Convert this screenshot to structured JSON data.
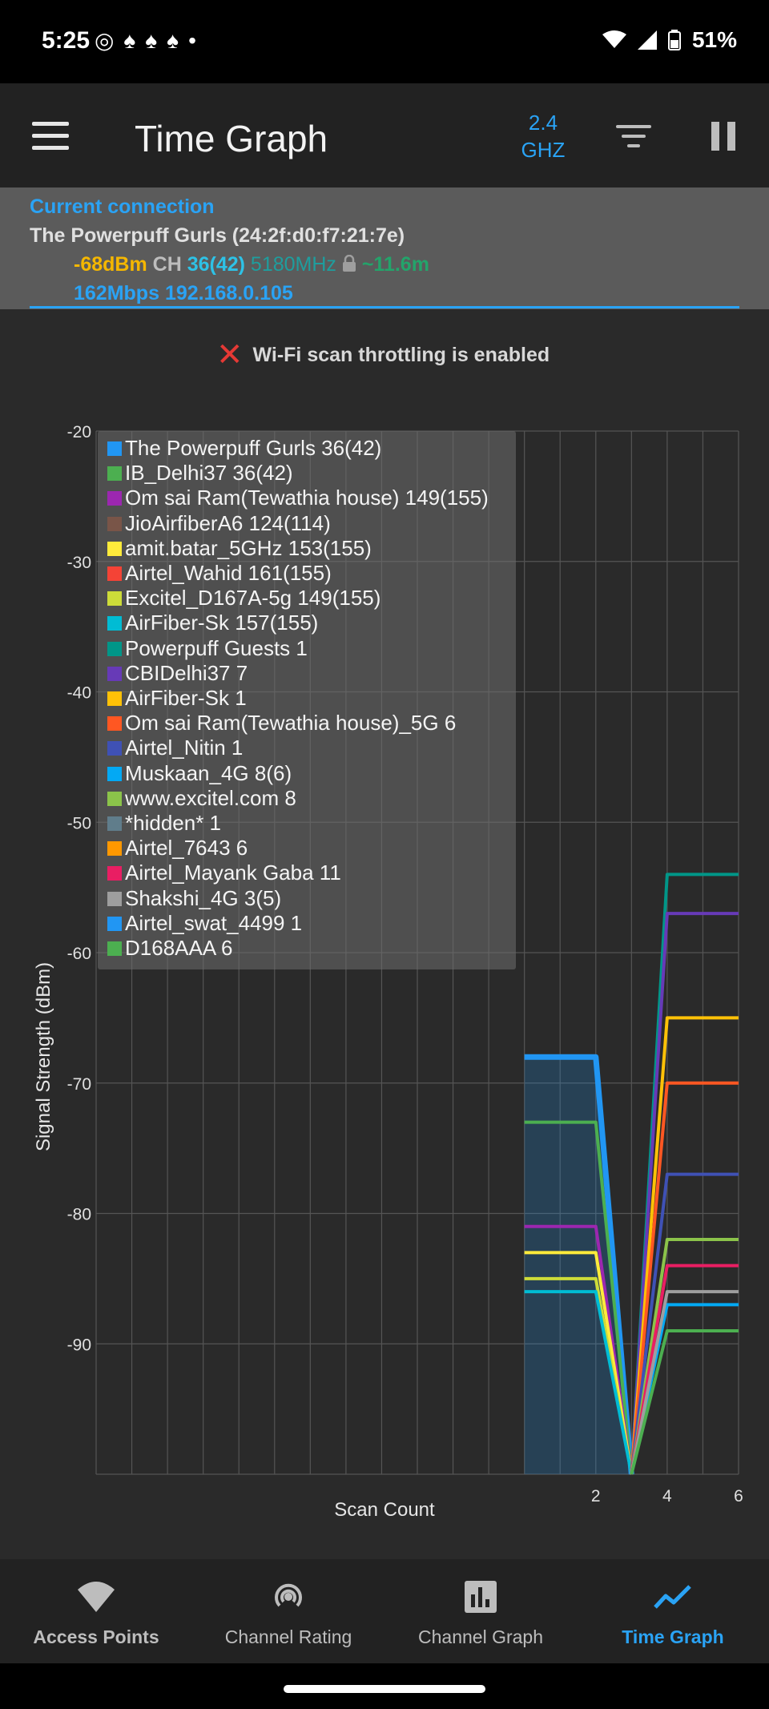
{
  "status": {
    "time": "5:25",
    "battery": "51%",
    "notification_icons": [
      "whatsapp-icon",
      "snapchat-icon",
      "snapchat-icon",
      "snapchat-icon",
      "dot-icon"
    ]
  },
  "app_bar": {
    "title": "Time Graph",
    "band_line1": "2.4",
    "band_line2": "GHZ"
  },
  "connection": {
    "label": "Current connection",
    "ssid": "The Powerpuff Gurls (24:2f:d0:f7:21:7e)",
    "signal": "-68dBm",
    "ch_label": "CH",
    "channel": "36(42)",
    "frequency": "5180MHz",
    "distance": "~11.6m",
    "speed": "162Mbps",
    "ip": "192.168.0.105"
  },
  "throttle_message": "Wi-Fi scan throttling is enabled",
  "colors": {
    "accent": "#2aa3f5",
    "background": "#2a2a2a",
    "panel": "#5b5b5b"
  },
  "chart_data": {
    "type": "line",
    "xlabel": "Scan Count",
    "ylabel": "Signal Strength (dBm)",
    "ylim": [
      -100,
      -20
    ],
    "y_ticks": [
      -20,
      -30,
      -40,
      -50,
      -60,
      -70,
      -80,
      -90
    ],
    "x_ticks": [
      "2",
      "4",
      "6"
    ],
    "xlim": [
      -12,
      6
    ],
    "x": [
      0,
      1,
      2,
      3,
      4,
      5,
      6
    ],
    "grid": true,
    "legend_position": "top-left",
    "series": [
      {
        "name": "The Powerpuff Gurls 36(42)",
        "color": "#2196f3",
        "values": [
          -68,
          -68,
          -68,
          -100,
          null,
          null,
          null
        ],
        "highlight": true
      },
      {
        "name": "IB_Delhi37 36(42)",
        "color": "#4caf50",
        "values": [
          -73,
          -73,
          -73,
          -100,
          null,
          null,
          null
        ]
      },
      {
        "name": "Om sai Ram(Tewathia house) 149(155)",
        "color": "#9c27b0",
        "values": [
          -81,
          -81,
          -81,
          -100,
          null,
          null,
          null
        ]
      },
      {
        "name": "JioAirfiberA6 124(114)",
        "color": "#795548",
        "values": [
          null,
          null,
          null,
          null,
          null,
          null,
          null
        ]
      },
      {
        "name": "amit.batar_5GHz 153(155)",
        "color": "#ffeb3b",
        "values": [
          -83,
          -83,
          -83,
          -100,
          null,
          null,
          null
        ]
      },
      {
        "name": "Airtel_Wahid 161(155)",
        "color": "#f44336",
        "values": [
          null,
          null,
          null,
          null,
          null,
          null,
          null
        ]
      },
      {
        "name": "Excitel_D167A-5g 149(155)",
        "color": "#cddc39",
        "values": [
          -85,
          -85,
          -85,
          -100,
          null,
          null,
          null
        ]
      },
      {
        "name": "AirFiber-Sk 157(155)",
        "color": "#00bcd4",
        "values": [
          -86,
          -86,
          -86,
          -100,
          null,
          null,
          null
        ]
      },
      {
        "name": "Powerpuff Guests 1",
        "color": "#009688",
        "values": [
          null,
          null,
          null,
          -100,
          -54,
          -54,
          -54
        ]
      },
      {
        "name": "CBIDelhi37 7",
        "color": "#673ab7",
        "values": [
          null,
          null,
          null,
          -100,
          -57,
          -57,
          -57
        ]
      },
      {
        "name": "AirFiber-Sk 1",
        "color": "#ffc107",
        "values": [
          null,
          null,
          null,
          -100,
          -65,
          -65,
          -65
        ]
      },
      {
        "name": "Om sai Ram(Tewathia house)_5G 6",
        "color": "#ff5722",
        "values": [
          null,
          null,
          null,
          -100,
          -70,
          -70,
          -70
        ]
      },
      {
        "name": "Airtel_Nitin 1",
        "color": "#3f51b5",
        "values": [
          null,
          null,
          null,
          -100,
          -77,
          -77,
          -77
        ]
      },
      {
        "name": "Muskaan_4G 8(6)",
        "color": "#03a9f4",
        "values": [
          null,
          null,
          null,
          -100,
          -87,
          -87,
          -87
        ]
      },
      {
        "name": "www.excitel.com 8",
        "color": "#8bc34a",
        "values": [
          null,
          null,
          null,
          -100,
          -82,
          -82,
          -82
        ]
      },
      {
        "name": "*hidden* 1",
        "color": "#607d8b",
        "values": [
          null,
          null,
          null,
          null,
          null,
          null,
          null
        ]
      },
      {
        "name": "Airtel_7643 6",
        "color": "#ff9800",
        "values": [
          null,
          null,
          null,
          null,
          null,
          null,
          null
        ]
      },
      {
        "name": "Airtel_Mayank Gaba 11",
        "color": "#e91e63",
        "values": [
          null,
          null,
          null,
          -100,
          -84,
          -84,
          -84
        ]
      },
      {
        "name": "Shakshi_4G 3(5)",
        "color": "#9e9e9e",
        "values": [
          null,
          null,
          null,
          -100,
          -86,
          -86,
          -86
        ]
      },
      {
        "name": "Airtel_swat_4499 1",
        "color": "#2196f3",
        "values": [
          null,
          null,
          null,
          null,
          null,
          null,
          null
        ]
      },
      {
        "name": "D168AAA 6",
        "color": "#4caf50",
        "values": [
          null,
          null,
          null,
          -100,
          -89,
          -89,
          -89
        ]
      }
    ]
  },
  "bottom_nav": {
    "items": [
      {
        "label": "Access Points",
        "icon": "wifi-icon",
        "active": false
      },
      {
        "label": "Channel Rating",
        "icon": "radio-tower-icon",
        "active": false
      },
      {
        "label": "Channel Graph",
        "icon": "bar-chart-icon",
        "active": false
      },
      {
        "label": "Time Graph",
        "icon": "line-chart-icon",
        "active": true
      }
    ]
  }
}
